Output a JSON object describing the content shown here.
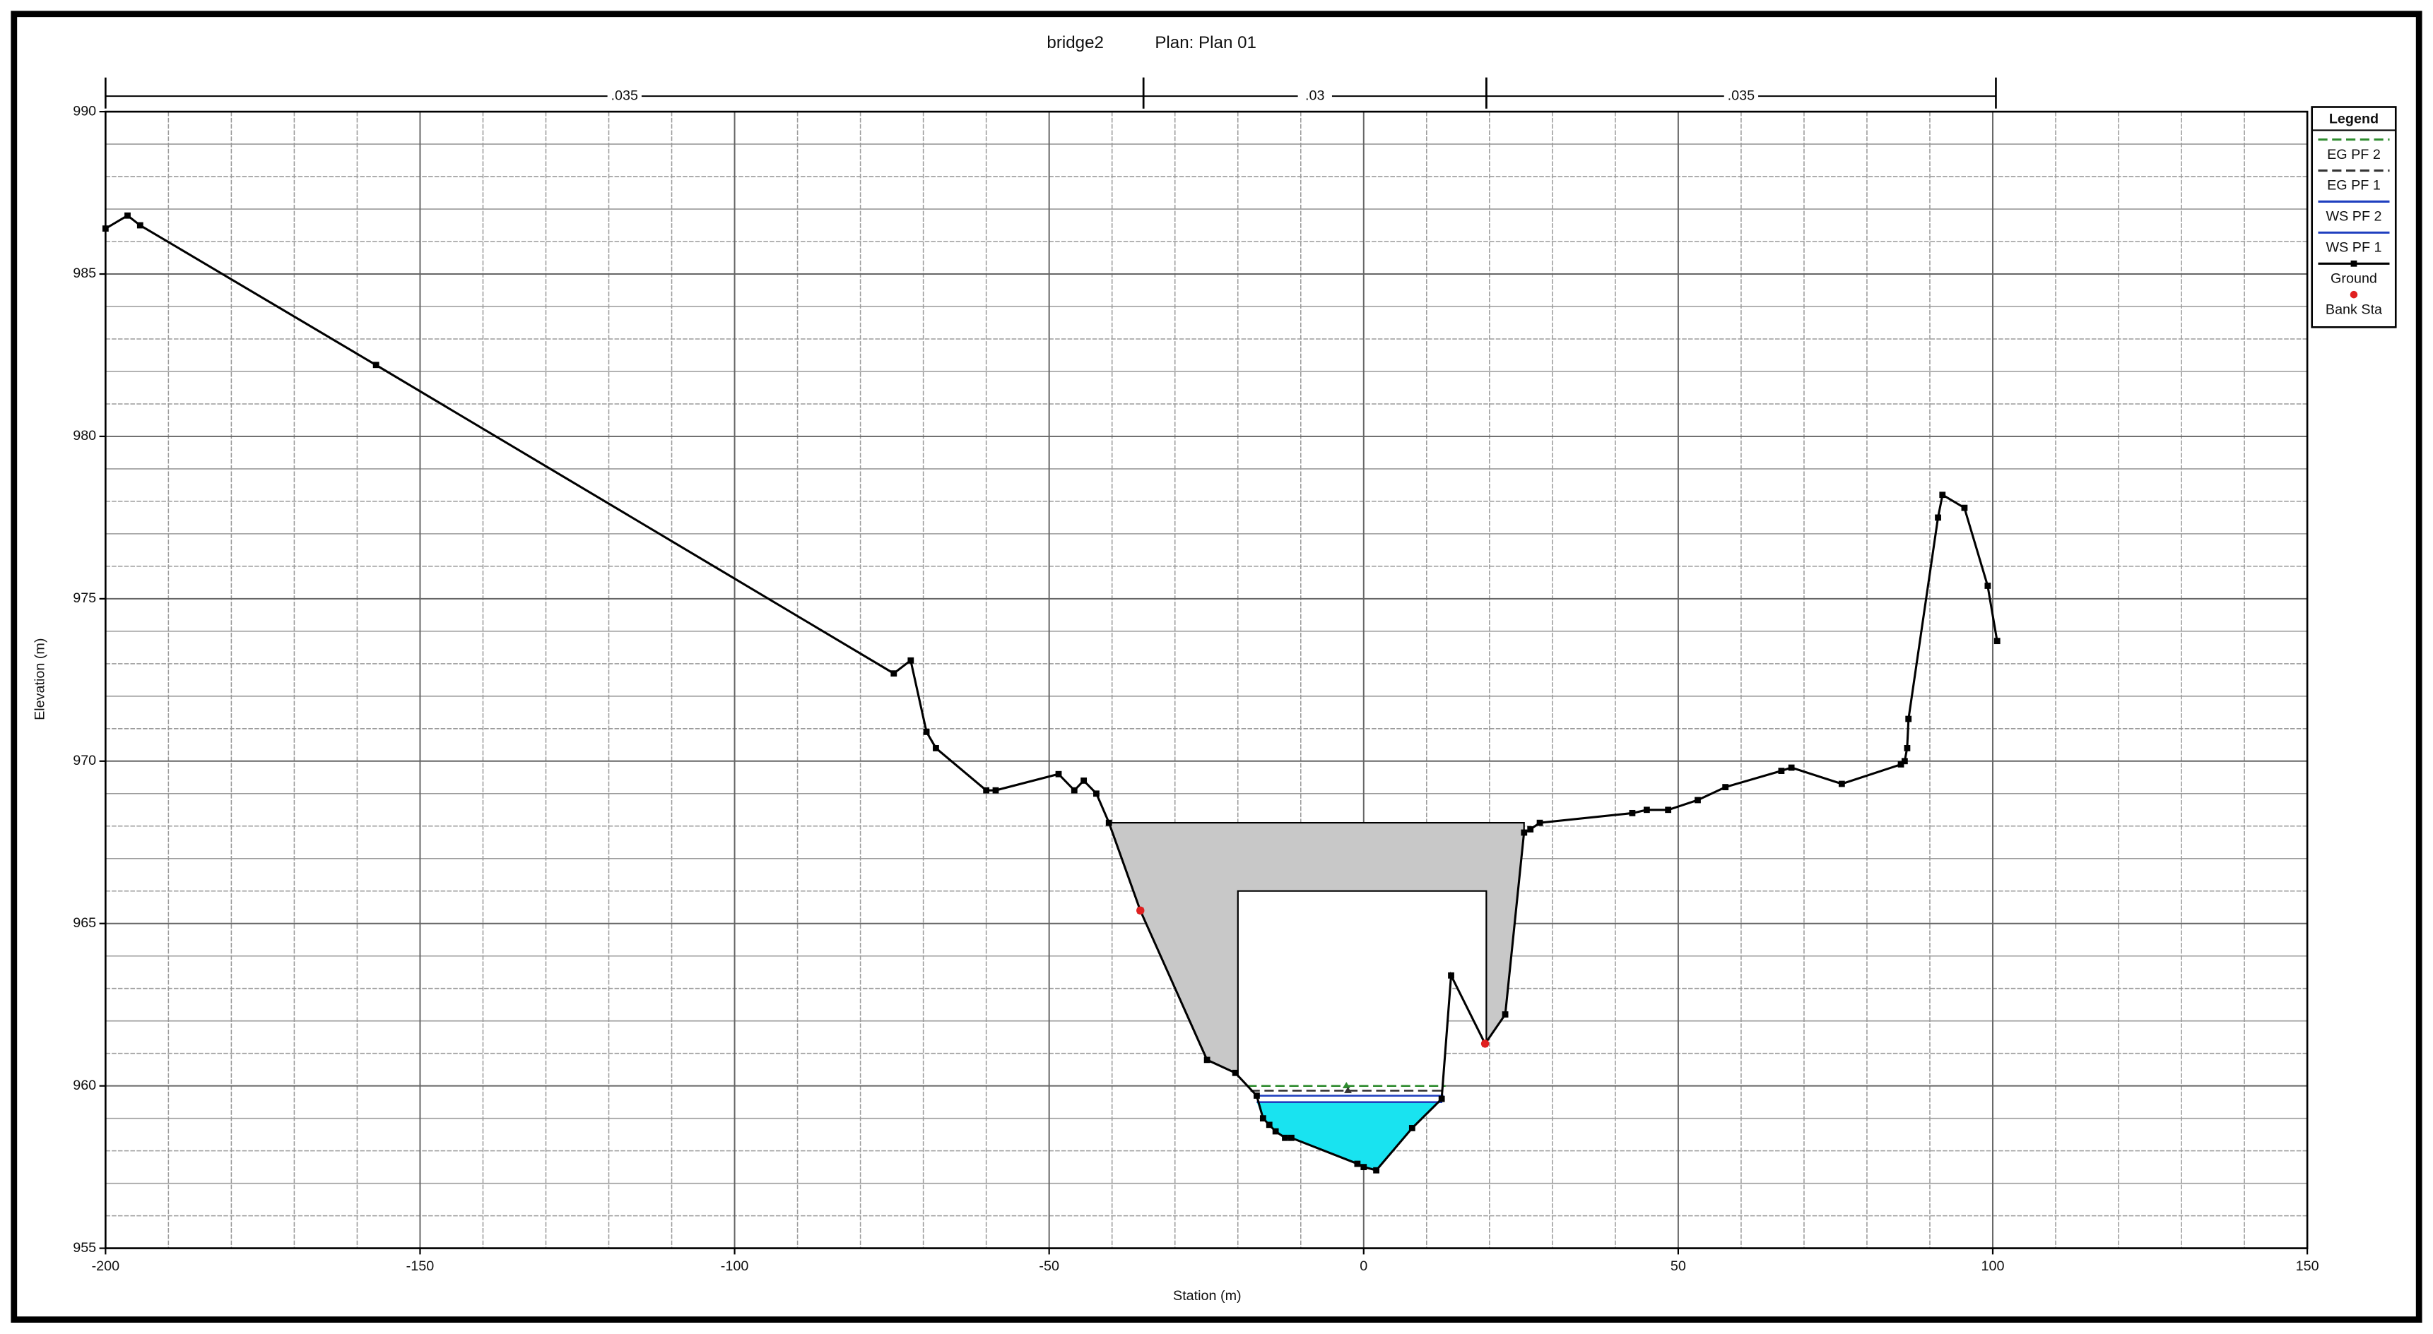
{
  "chart_data": {
    "type": "line",
    "title": "bridge2",
    "subtitle": "Plan: Plan 01",
    "x_label": "Station (m)",
    "y_label": "Elevation (m)",
    "xlim": [
      -200,
      150
    ],
    "ylim": [
      955,
      990
    ],
    "xticks": [
      -200,
      -150,
      -100,
      -50,
      0,
      50,
      100,
      150
    ],
    "yticks": [
      955,
      960,
      965,
      970,
      975,
      980,
      985,
      990
    ],
    "grid": true,
    "legend_title": "Legend",
    "legend_position": "right",
    "n_values": [
      {
        "label": ".035",
        "start": -200,
        "end": -35
      },
      {
        "label": ".03",
        "start": -35,
        "end": 19.5
      },
      {
        "label": ".035",
        "start": 19.5,
        "end": 100.5
      }
    ],
    "bridge": {
      "high_chord": 968.1,
      "low_chord": 966,
      "x": [
        -40.5,
        25.5
      ],
      "opening": [
        -20,
        19.5
      ],
      "color": "#c8c8c8"
    },
    "series": [
      {
        "name": "EG PF 2",
        "color": "#2e8b2e",
        "style": "dashed",
        "x": [
          -18.5,
          13
        ],
        "values": [
          960.0,
          960.0
        ]
      },
      {
        "name": "EG PF 1",
        "color": "#333333",
        "style": "dashed",
        "x": [
          -18,
          13
        ],
        "values": [
          959.85,
          959.85
        ]
      },
      {
        "name": "WS PF 2",
        "color": "#1f3fbf",
        "style": "solid",
        "x": [
          -17.5,
          12.7
        ],
        "values": [
          959.7,
          959.7
        ]
      },
      {
        "name": "WS PF 1",
        "color": "#1f3fbf",
        "style": "solid",
        "fill": "#19e3f0",
        "x": [
          -17,
          12.5
        ],
        "values": [
          959.5,
          959.5
        ]
      },
      {
        "name": "Ground",
        "color": "#000000",
        "style": "solid",
        "x": [
          -200,
          -196.5,
          -194.5,
          -157,
          -74.7,
          -72,
          -69.5,
          -68,
          -60,
          -58.5,
          -48.5,
          -46,
          -44.5,
          -42.5,
          -40.5,
          -35.5,
          -24.9,
          -20.4,
          -17,
          -16,
          -15,
          -14,
          -12.5,
          -11.5,
          -1,
          0,
          2,
          7.7,
          12.4,
          13.9,
          19.3,
          22.5,
          25.5,
          26.5,
          28,
          42.7,
          45,
          48.4,
          53.1,
          57.5,
          66.4,
          68,
          76,
          85.4,
          86,
          86.4,
          86.6,
          91.3,
          92,
          95.5,
          99.2,
          100.7
        ],
        "values": [
          986.4,
          986.8,
          986.5,
          982.2,
          972.7,
          973.1,
          970.9,
          970.4,
          969.1,
          969.1,
          969.6,
          969.1,
          969.4,
          969,
          968.1,
          965.4,
          960.8,
          960.4,
          959.7,
          959,
          958.8,
          958.6,
          958.4,
          958.4,
          957.6,
          957.5,
          957.4,
          958.7,
          959.6,
          963.4,
          961.3,
          962.2,
          967.8,
          967.9,
          968.1,
          968.4,
          968.5,
          968.5,
          968.8,
          969.2,
          969.7,
          969.8,
          969.3,
          969.9,
          970.0,
          970.4,
          971.3,
          977.5,
          978.2,
          977.8,
          975.4,
          973.7
        ]
      },
      {
        "name": "Bank Sta",
        "color": "#e02020",
        "style": "points",
        "x": [
          -35.5,
          19.3
        ],
        "values": [
          965.4,
          961.3
        ]
      }
    ]
  }
}
